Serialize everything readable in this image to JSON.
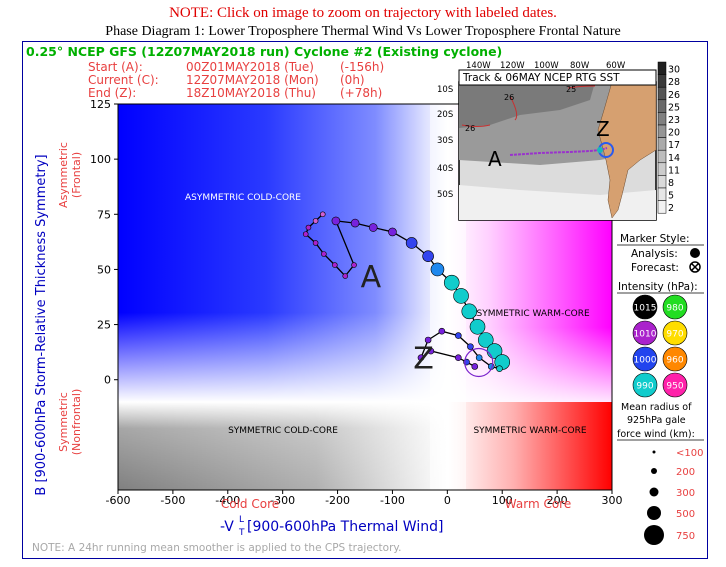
{
  "header": {
    "note": "NOTE: Click on image to zoom on trajectory with labeled dates.",
    "title": "Phase Diagram 1: Lower Troposphere Thermal Wind Vs Lower Troposphere Frontal Nature"
  },
  "info": {
    "model_line": "0.25° NCEP GFS (12Z07MAY2018 run) Cyclone #2 (Existing cyclone)",
    "start": {
      "label": "Start (A):",
      "date": "00Z01MAY2018 (Tue)",
      "offset": "(-156h)"
    },
    "current": {
      "label": "Current (C):",
      "date": "12Z07MAY2018 (Mon)",
      "offset": "(0h)"
    },
    "end": {
      "label": "End (Z):",
      "date": "18Z10MAY2018 (Thu)",
      "offset": "(+78h)"
    }
  },
  "quadrants": {
    "asym_cold": "ASYMMETRIC COLD-CORE",
    "asym_warm": "ASYMMETRIC WARM-CORE",
    "sym_cold": "SYMMETRIC COLD-CORE",
    "sym_warm": "SYMMETRIC WARM-CORE"
  },
  "axes": {
    "x_title": "-V",
    "x_title_sub": "T",
    "x_title_sup": "L",
    "x_title_rest": " [900-600hPa Thermal Wind]",
    "x_cold": "Cold Core",
    "x_warm": "Warm Core",
    "y_title": "B [900-600hPa Storm-Relative Thickness Symmetry]",
    "y_asym": "Asymmetric",
    "y_asym2": "(Frontal)",
    "y_sym": "Symmetric",
    "y_sym2": "(Nonfrontal)",
    "x_ticks": [
      "-600",
      "-500",
      "-400",
      "-300",
      "-200",
      "-100",
      "0",
      "100",
      "200",
      "300"
    ],
    "y_ticks": [
      "125",
      "100",
      "75",
      "50",
      "25",
      "0"
    ]
  },
  "footnote": "NOTE:  A 24hr running mean smoother is applied to the CPS trajectory.",
  "inset": {
    "title": "Track & 06MAY NCEP RTG SST",
    "lon_labels": [
      "140W",
      "120W",
      "100W",
      "80W",
      "60W"
    ],
    "lat_labels": [
      "10S",
      "20S",
      "30S",
      "40S",
      "50S"
    ],
    "colorbar": [
      "30",
      "28",
      "26",
      "25",
      "23",
      "20",
      "17",
      "14",
      "11",
      "8",
      "5",
      "2"
    ],
    "contour_labels": [
      "26",
      "26",
      "25"
    ],
    "track_start": "A",
    "track_end": "Z"
  },
  "legend": {
    "marker_title": "Marker Style:",
    "analysis": "Analysis:",
    "forecast": "Forecast:",
    "intensity_title": "Intensity (hPa):",
    "intensities": [
      {
        "label": "1015",
        "color": "#000000"
      },
      {
        "label": "980",
        "color": "#22dd22"
      },
      {
        "label": "1010",
        "color": "#aa22cc"
      },
      {
        "label": "970",
        "color": "#ffdd00"
      },
      {
        "label": "1000",
        "color": "#2244ee"
      },
      {
        "label": "960",
        "color": "#ff8800"
      },
      {
        "label": "990",
        "color": "#11cccc"
      },
      {
        "label": "950",
        "color": "#ff22aa"
      }
    ],
    "radius_title1": "Mean radius of",
    "radius_title2": "925hPa gale",
    "radius_title3": "force wind (km):",
    "radii": [
      "<100",
      "200",
      "300",
      "500",
      "750"
    ]
  },
  "colors": {
    "text_red": "#e84040",
    "text_blue": "#0000c0",
    "text_green": "#00b000",
    "cold_blue": "#0000ff",
    "warm_magenta": "#ff00ff",
    "warm_red": "#ff0000"
  },
  "chart_data": {
    "type": "scatter",
    "xlim": [
      -600,
      300
    ],
    "ylim": [
      -50,
      125
    ],
    "grid": false,
    "trajectory": [
      {
        "x": -227,
        "y": 75,
        "phase": "analysis",
        "hpa": 1013
      },
      {
        "x": -240,
        "y": 72,
        "phase": "analysis",
        "hpa": 1013
      },
      {
        "x": -253,
        "y": 69,
        "phase": "analysis",
        "hpa": 1012
      },
      {
        "x": -258,
        "y": 66,
        "phase": "analysis",
        "hpa": 1012
      },
      {
        "x": -240,
        "y": 62,
        "phase": "analysis",
        "hpa": 1012
      },
      {
        "x": -225,
        "y": 57,
        "phase": "analysis",
        "hpa": 1011
      },
      {
        "x": -205,
        "y": 52,
        "phase": "analysis",
        "hpa": 1011
      },
      {
        "x": -186,
        "y": 47,
        "phase": "analysis",
        "hpa": 1010
      },
      {
        "x": -170,
        "y": 52,
        "phase": "analysis",
        "hpa": 1009
      },
      {
        "x": -203,
        "y": 72,
        "phase": "analysis",
        "hpa": 1008
      },
      {
        "x": -168,
        "y": 71,
        "phase": "analysis",
        "hpa": 1007
      },
      {
        "x": -135,
        "y": 69,
        "phase": "analysis",
        "hpa": 1006
      },
      {
        "x": -100,
        "y": 67,
        "phase": "analysis",
        "hpa": 1004
      },
      {
        "x": -65,
        "y": 62,
        "phase": "analysis",
        "hpa": 1002
      },
      {
        "x": -35,
        "y": 56,
        "phase": "analysis",
        "hpa": 999
      },
      {
        "x": -18,
        "y": 50,
        "phase": "analysis",
        "hpa": 996
      },
      {
        "x": 8,
        "y": 44,
        "phase": "analysis",
        "hpa": 993
      },
      {
        "x": 25,
        "y": 38,
        "phase": "analysis",
        "hpa": 991
      },
      {
        "x": 40,
        "y": 31,
        "phase": "analysis",
        "hpa": 991
      },
      {
        "x": 55,
        "y": 24,
        "phase": "analysis",
        "hpa": 991
      },
      {
        "x": 70,
        "y": 18,
        "phase": "analysis",
        "hpa": 991
      },
      {
        "x": 86,
        "y": 13,
        "phase": "analysis",
        "hpa": 991
      },
      {
        "x": 100,
        "y": 8,
        "phase": "analysis",
        "hpa": 991
      },
      {
        "x": 95,
        "y": 5,
        "phase": "forecast",
        "hpa": 992
      },
      {
        "x": 80,
        "y": 6,
        "phase": "forecast",
        "hpa": 995
      },
      {
        "x": 58,
        "y": 10,
        "phase": "forecast",
        "hpa": 998
      },
      {
        "x": 42,
        "y": 15,
        "phase": "forecast",
        "hpa": 1000
      },
      {
        "x": 20,
        "y": 20,
        "phase": "forecast",
        "hpa": 1002
      },
      {
        "x": -10,
        "y": 22,
        "phase": "forecast",
        "hpa": 1005
      },
      {
        "x": -35,
        "y": 18,
        "phase": "forecast",
        "hpa": 1007
      },
      {
        "x": -48,
        "y": 10,
        "phase": "forecast",
        "hpa": 1008
      },
      {
        "x": -30,
        "y": 13,
        "phase": "forecast",
        "hpa": 1007
      },
      {
        "x": 20,
        "y": 10,
        "phase": "forecast",
        "hpa": 1005
      },
      {
        "x": 35,
        "y": 8,
        "phase": "forecast",
        "hpa": 1003
      },
      {
        "x": 50,
        "y": 6,
        "phase": "forecast",
        "hpa": 1004
      }
    ],
    "labels": [
      {
        "text": "A",
        "x": -158,
        "y": 42
      },
      {
        "text": "Z",
        "x": -62,
        "y": 5
      }
    ]
  }
}
